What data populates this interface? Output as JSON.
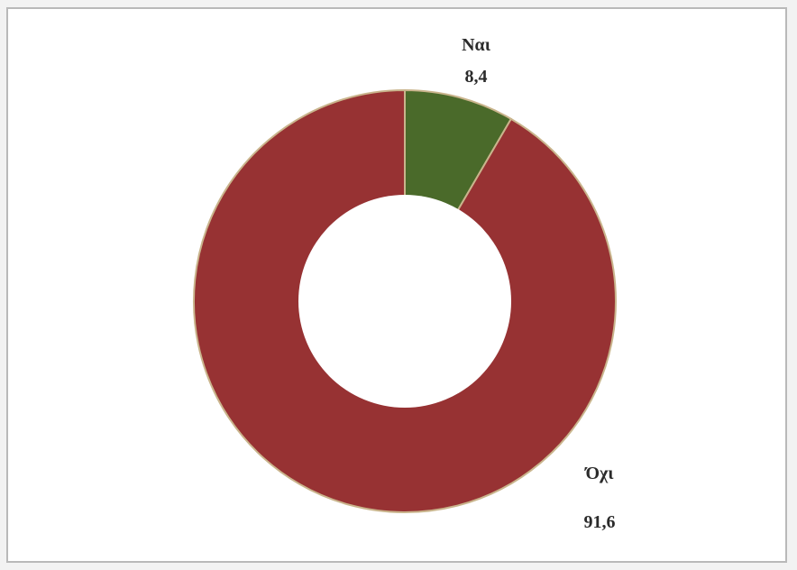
{
  "chart_data": {
    "type": "pie",
    "subtype": "donut",
    "title": "",
    "slices": [
      {
        "label": "Ναι",
        "value": 8.4,
        "value_text": "8,4",
        "color": "#4a6a2a"
      },
      {
        "label": "Όχι",
        "value": 91.6,
        "value_text": "91,6",
        "color": "#973233"
      }
    ],
    "legend": "none",
    "slice_border_color": "#c9b48c",
    "background": "#ffffff"
  }
}
